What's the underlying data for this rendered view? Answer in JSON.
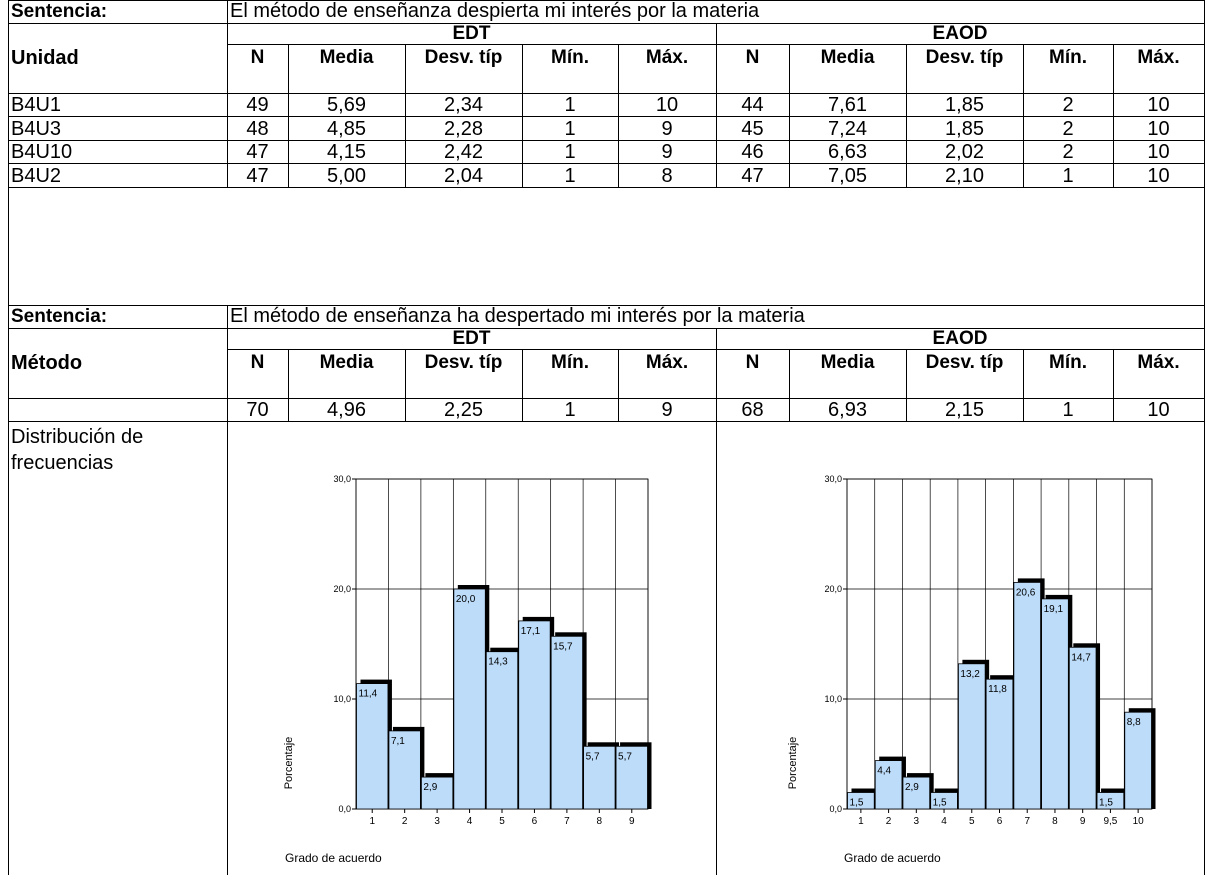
{
  "table1": {
    "sentence_label": "Sentencia:",
    "sentence": "El método de enseñanza despierta mi interés por la materia",
    "row_header": "Unidad",
    "groups": [
      "EDT",
      "EAOD"
    ],
    "columns": [
      "N",
      "Media",
      "Desv. típ",
      "Mín.",
      "Máx."
    ],
    "rows": [
      {
        "label": "B4U1",
        "edt": [
          "49",
          "5,69",
          "2,34",
          "1",
          "10"
        ],
        "eaod": [
          "44",
          "7,61",
          "1,85",
          "2",
          "10"
        ]
      },
      {
        "label": "B4U3",
        "edt": [
          "48",
          "4,85",
          "2,28",
          "1",
          "9"
        ],
        "eaod": [
          "45",
          "7,24",
          "1,85",
          "2",
          "10"
        ]
      },
      {
        "label": "B4U10",
        "edt": [
          "47",
          "4,15",
          "2,42",
          "1",
          "9"
        ],
        "eaod": [
          "46",
          "6,63",
          "2,02",
          "2",
          "10"
        ]
      },
      {
        "label": "B4U2",
        "edt": [
          "47",
          "5,00",
          "2,04",
          "1",
          "8"
        ],
        "eaod": [
          "47",
          "7,05",
          "2,10",
          "1",
          "10"
        ]
      }
    ]
  },
  "table2": {
    "sentence_label": "Sentencia:",
    "sentence": "El método de enseñanza ha despertado mi interés por la materia",
    "row_header": "Método",
    "groups": [
      "EDT",
      "EAOD"
    ],
    "columns": [
      "N",
      "Media",
      "Desv. típ",
      "Mín.",
      "Máx."
    ],
    "rows": [
      {
        "label": "",
        "edt": [
          "70",
          "4,96",
          "2,25",
          "1",
          "9"
        ],
        "eaod": [
          "68",
          "6,93",
          "2,15",
          "1",
          "10"
        ]
      }
    ]
  },
  "distribution_label": "Distribución de frecuencias",
  "chart_data": [
    {
      "type": "bar",
      "categories": [
        "1",
        "2",
        "3",
        "4",
        "5",
        "6",
        "7",
        "8",
        "9"
      ],
      "values": [
        11.4,
        7.1,
        2.9,
        20.0,
        14.3,
        17.1,
        15.7,
        5.7,
        5.7
      ],
      "value_labels": [
        "11,4",
        "7,1",
        "2,9",
        "20,0",
        "14,3",
        "17,1",
        "15,7",
        "5,7",
        "5,7"
      ],
      "yticks": [
        "0,0",
        "10,0",
        "20,0",
        "30,0"
      ],
      "xlabel": "Grado de acuerdo",
      "ylabel": "Porcentaje",
      "ylim": [
        0,
        30
      ],
      "grid": true,
      "bar_color": "#bcdcfa",
      "shadow_color": "#000000"
    },
    {
      "type": "bar",
      "categories": [
        "1",
        "2",
        "3",
        "4",
        "5",
        "6",
        "7",
        "8",
        "9",
        "9,5",
        "10"
      ],
      "values": [
        1.5,
        4.4,
        2.9,
        1.5,
        13.2,
        11.8,
        20.6,
        19.1,
        14.7,
        1.5,
        8.8
      ],
      "value_labels": [
        "1,5",
        "4,4",
        "2,9",
        "1,5",
        "13,2",
        "11,8",
        "20,6",
        "19,1",
        "14,7",
        "1,5",
        "8,8"
      ],
      "yticks": [
        "0,0",
        "10,0",
        "20,0",
        "30,0"
      ],
      "xlabel": "Grado de acuerdo",
      "ylabel": "Porcentaje",
      "ylim": [
        0,
        30
      ],
      "grid": true,
      "bar_color": "#bcdcfa",
      "shadow_color": "#000000"
    }
  ]
}
